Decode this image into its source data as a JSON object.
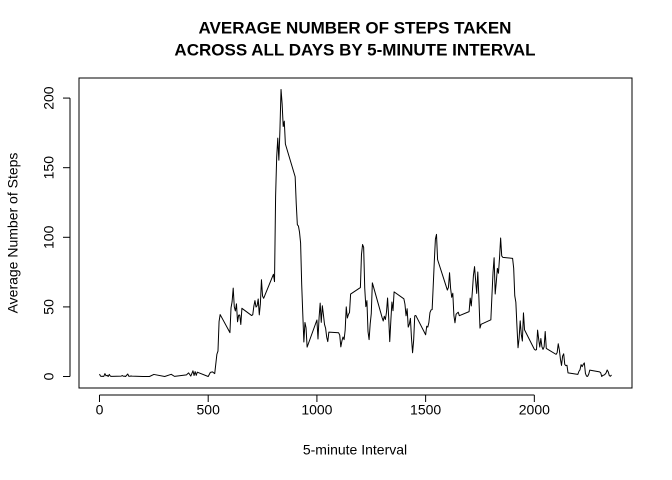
{
  "chart_data": {
    "type": "line",
    "title": [
      "AVERAGE NUMBER OF STEPS TAKEN",
      "ACROSS ALL DAYS BY 5-MINUTE INTERVAL"
    ],
    "x_label": "5-minute Interval",
    "y_label": "Average Number of Steps",
    "color": "#000000",
    "xlim": [
      -94.2,
      2449.2
    ],
    "ylim": [
      -8.25,
      214.42
    ],
    "xticks": [
      0,
      500,
      1000,
      1500,
      2000
    ],
    "yticks": [
      0,
      50,
      100,
      150,
      200
    ],
    "grid": false,
    "x": [
      0,
      5,
      10,
      15,
      20,
      25,
      30,
      35,
      40,
      45,
      50,
      55,
      100,
      105,
      110,
      115,
      120,
      130,
      135,
      140,
      145,
      150,
      200,
      230,
      250,
      300,
      330,
      345,
      400,
      410,
      420,
      430,
      435,
      440,
      445,
      450,
      500,
      510,
      520,
      530,
      540,
      545,
      550,
      555,
      600,
      605,
      610,
      615,
      620,
      625,
      630,
      635,
      640,
      645,
      650,
      655,
      700,
      705,
      710,
      715,
      720,
      725,
      730,
      735,
      740,
      745,
      750,
      755,
      800,
      805,
      810,
      815,
      820,
      825,
      830,
      835,
      840,
      845,
      850,
      855,
      900,
      905,
      910,
      915,
      920,
      925,
      930,
      935,
      940,
      945,
      950,
      955,
      1000,
      1005,
      1010,
      1015,
      1020,
      1025,
      1030,
      1035,
      1040,
      1045,
      1050,
      1055,
      1100,
      1105,
      1110,
      1115,
      1120,
      1125,
      1130,
      1135,
      1140,
      1145,
      1150,
      1155,
      1200,
      1205,
      1210,
      1215,
      1220,
      1225,
      1230,
      1235,
      1240,
      1245,
      1250,
      1255,
      1300,
      1305,
      1310,
      1315,
      1320,
      1325,
      1330,
      1335,
      1340,
      1345,
      1350,
      1355,
      1400,
      1405,
      1410,
      1415,
      1420,
      1425,
      1430,
      1435,
      1440,
      1445,
      1450,
      1455,
      1500,
      1505,
      1510,
      1515,
      1520,
      1525,
      1530,
      1535,
      1540,
      1545,
      1550,
      1555,
      1600,
      1605,
      1610,
      1615,
      1620,
      1625,
      1630,
      1635,
      1640,
      1645,
      1650,
      1655,
      1700,
      1705,
      1710,
      1715,
      1720,
      1725,
      1730,
      1735,
      1740,
      1745,
      1750,
      1755,
      1800,
      1805,
      1810,
      1815,
      1820,
      1825,
      1830,
      1835,
      1840,
      1845,
      1850,
      1855,
      1900,
      1905,
      1910,
      1915,
      1920,
      1925,
      1930,
      1935,
      1940,
      1945,
      1950,
      1955,
      2000,
      2005,
      2010,
      2015,
      2020,
      2025,
      2030,
      2035,
      2040,
      2045,
      2050,
      2055,
      2100,
      2105,
      2110,
      2115,
      2120,
      2125,
      2130,
      2135,
      2140,
      2145,
      2150,
      2155,
      2200,
      2205,
      2210,
      2215,
      2220,
      2225,
      2230,
      2235,
      2240,
      2245,
      2250,
      2255,
      2300,
      2305,
      2310,
      2315,
      2320,
      2325,
      2330,
      2335,
      2340,
      2345,
      2350,
      2355
    ],
    "values": [
      1.7,
      0.3,
      0.1,
      0.2,
      0.1,
      2.1,
      0.5,
      0.9,
      0,
      1.5,
      0.3,
      0.1,
      0.3,
      0.7,
      0.2,
      0.3,
      0,
      1.8,
      0.2,
      0.2,
      0.4,
      0.3,
      0,
      0,
      1.5,
      0,
      1.6,
      0.1,
      1.2,
      2.6,
      0.3,
      4.1,
      0.7,
      3.5,
      0.8,
      3.1,
      0,
      3,
      3.3,
      2.1,
      16,
      18.3,
      39.5,
      44.5,
      31.5,
      49.3,
      53.8,
      63.5,
      50,
      47.1,
      52.2,
      39.3,
      44.0,
      44.2,
      37.4,
      49,
      43.8,
      44.4,
      50.5,
      54.5,
      49.9,
      50.9,
      55.7,
      44.3,
      52.3,
      69.5,
      57.8,
      56.2,
      73.4,
      68.2,
      129.4,
      157.5,
      171.2,
      155.4,
      177.3,
      206.2,
      195.9,
      179.6,
      183.4,
      167,
      143.5,
      124,
      109.1,
      108.1,
      103.7,
      95.97,
      66.2,
      45.2,
      24.8,
      38.8,
      34.98,
      21.1,
      40.6,
      26.98,
      42.4,
      52.7,
      38.9,
      50.8,
      44.3,
      37.4,
      34.7,
      28.3,
      25.1,
      31.9,
      31.4,
      29.7,
      21.3,
      25.5,
      28.4,
      26.5,
      33.4,
      49.98,
      42.0,
      44.6,
      46.0,
      59.2,
      63.9,
      87.7,
      94.8,
      92.8,
      63.4,
      50.2,
      54.5,
      32.4,
      26.5,
      37.7,
      45.1,
      67.3,
      42.3,
      39.9,
      43.3,
      40.98,
      46.2,
      56.4,
      42.8,
      25.1,
      39.97,
      53.5,
      47.3,
      60.8,
      55.8,
      51.96,
      43.6,
      48.7,
      35.5,
      37.5,
      41.8,
      27.5,
      17.1,
      26.1,
      43.6,
      43.8,
      30.0,
      36.1,
      35.5,
      38.8,
      45.96,
      47.8,
      48.1,
      65.3,
      82.9,
      98.7,
      102.1,
      83.96,
      62.1,
      64.1,
      74.5,
      63.2,
      56.9,
      59.8,
      43.9,
      38.6,
      44.7,
      45.5,
      46.2,
      43.7,
      46.6,
      56.3,
      50.7,
      61.2,
      72.7,
      78.9,
      68.9,
      59.7,
      75.1,
      56.5,
      34.8,
      37.5,
      40.7,
      58.0,
      74.7,
      85.3,
      59.3,
      67.8,
      77.7,
      74.2,
      85.3,
      99.5,
      86.6,
      85.6,
      84.9,
      77.8,
      58.0,
      53.4,
      36.3,
      20.7,
      27.4,
      40.0,
      30.2,
      25.5,
      45.7,
      33.5,
      19.6,
      19.0,
      19.3,
      33.3,
      26.8,
      21.2,
      27.3,
      21.3,
      19.5,
      21.3,
      32.3,
      20.2,
      15.9,
      17.2,
      23.5,
      19.2,
      12.5,
      8.0,
      14.7,
      16.3,
      8.7,
      7.8,
      8.1,
      2.6,
      1.5,
      3.7,
      4.8,
      8.5,
      7.1,
      8.7,
      9.8,
      2.2,
      0.3,
      0.1,
      1.6,
      4.6,
      3.3,
      2.8,
      0,
      0.8,
      1.0,
      1.6,
      2.6,
      4.7,
      3.3,
      0.6,
      0.2,
      1.1
    ]
  }
}
